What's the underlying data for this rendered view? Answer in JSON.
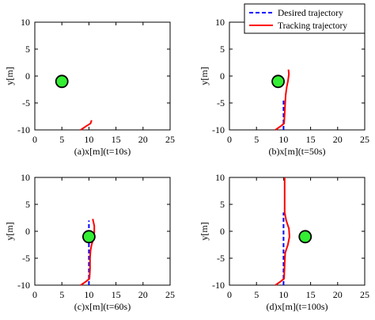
{
  "chart_data": [
    {
      "type": "line",
      "xlabel": "(a)x[m](t=10s)",
      "ylabel": "y[m]",
      "xlim": [
        0,
        25
      ],
      "ylim": [
        -10,
        10
      ],
      "xticks": [
        0,
        5,
        10,
        15,
        20,
        25
      ],
      "yticks": [
        -10,
        -5,
        0,
        5,
        10
      ],
      "grid": false,
      "series": [
        {
          "name": "Tracking trajectory",
          "color": "#ff0000",
          "style": "solid",
          "x": [
            8.5,
            9.5,
            10.0,
            10.3,
            10.4,
            10.5
          ],
          "y": [
            -10.0,
            -9.3,
            -9.0,
            -8.8,
            -8.5,
            -8.2
          ]
        }
      ],
      "obstacle": {
        "x": 5.0,
        "y": -1.0,
        "color": "#33ee33"
      }
    },
    {
      "type": "line",
      "xlabel": "(b)x[m](t=50s)",
      "ylabel": "y[m]",
      "xlim": [
        0,
        25
      ],
      "ylim": [
        -10,
        10
      ],
      "xticks": [
        0,
        5,
        10,
        15,
        20,
        25
      ],
      "yticks": [
        -10,
        -5,
        0,
        5,
        10
      ],
      "grid": false,
      "legend": {
        "location": "top-right",
        "entries": [
          "Desired trajectory",
          "Tracking trajectory"
        ]
      },
      "series": [
        {
          "name": "Desired trajectory",
          "color": "#0000ff",
          "style": "dashed",
          "x": [
            10.0,
            10.0
          ],
          "y": [
            -10.0,
            -4.5
          ]
        },
        {
          "name": "Tracking trajectory",
          "color": "#ff0000",
          "style": "solid",
          "x": [
            8.5,
            9.5,
            10.1,
            10.2,
            10.3,
            10.4,
            10.6,
            10.8,
            10.9,
            11.0,
            10.9
          ],
          "y": [
            -10.0,
            -9.3,
            -8.8,
            -7.0,
            -5.0,
            -3.5,
            -2.0,
            -1.0,
            -0.3,
            0.4,
            1.2
          ]
        }
      ],
      "obstacle": {
        "x": 9.0,
        "y": -1.0,
        "color": "#33ee33"
      }
    },
    {
      "type": "line",
      "xlabel": "(c)x[m](t=60s)",
      "ylabel": "y[m]",
      "xlim": [
        0,
        25
      ],
      "ylim": [
        -10,
        10
      ],
      "xticks": [
        0,
        5,
        10,
        15,
        20,
        25
      ],
      "yticks": [
        -10,
        -5,
        0,
        5,
        10
      ],
      "grid": false,
      "series": [
        {
          "name": "Desired trajectory",
          "color": "#0000ff",
          "style": "dashed",
          "x": [
            10.0,
            10.0
          ],
          "y": [
            -10.0,
            2.0
          ]
        },
        {
          "name": "Tracking trajectory",
          "color": "#ff0000",
          "style": "solid",
          "x": [
            8.5,
            9.5,
            10.1,
            10.2,
            10.2,
            10.3,
            10.5,
            10.8,
            11.0,
            11.0,
            10.7
          ],
          "y": [
            -10.0,
            -9.3,
            -8.8,
            -7.0,
            -5.0,
            -3.5,
            -2.5,
            -1.5,
            -0.2,
            1.0,
            2.3
          ]
        }
      ],
      "obstacle": {
        "x": 10.0,
        "y": -1.0,
        "color": "#33ee33"
      }
    },
    {
      "type": "line",
      "xlabel": "(d)x[m](t=100s)",
      "ylabel": "y[m]",
      "xlim": [
        0,
        25
      ],
      "ylim": [
        -10,
        10
      ],
      "xticks": [
        0,
        5,
        10,
        15,
        20,
        25
      ],
      "yticks": [
        -10,
        -5,
        0,
        5,
        10
      ],
      "grid": false,
      "series": [
        {
          "name": "Desired trajectory",
          "color": "#0000ff",
          "style": "dashed",
          "x": [
            10.0,
            10.0
          ],
          "y": [
            -10.0,
            3.5
          ]
        },
        {
          "name": "Tracking trajectory",
          "color": "#ff0000",
          "style": "solid",
          "x": [
            8.5,
            9.5,
            10.1,
            10.2,
            10.3,
            10.8,
            11.1,
            11.0,
            10.5,
            10.2,
            10.2,
            10.2
          ],
          "y": [
            -10.0,
            -9.3,
            -8.8,
            -6.0,
            -4.0,
            -2.5,
            -1.0,
            0.5,
            2.0,
            3.5,
            6.0,
            10.0
          ]
        }
      ],
      "obstacle": {
        "x": 14.0,
        "y": -1.0,
        "color": "#33ee33"
      }
    }
  ]
}
